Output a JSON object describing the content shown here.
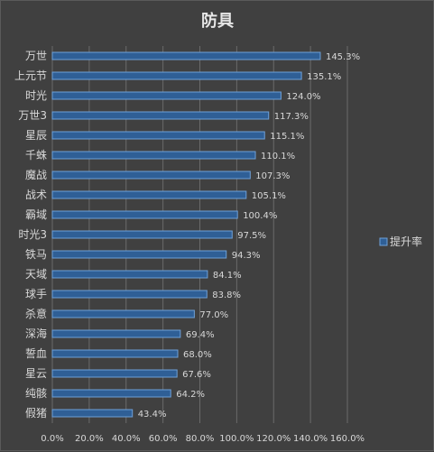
{
  "colors": {
    "background": "#404040",
    "bar_fill": "#2f5f96",
    "bar_stroke": "#6ea0d8",
    "grid": "#6a6a6a",
    "text": "#d8d8d8"
  },
  "chart_data": {
    "type": "bar",
    "orientation": "horizontal",
    "title": "防具",
    "categories": [
      "万世",
      "上元节",
      "时光",
      "万世3",
      "星辰",
      "千蛛",
      "魔战",
      "战术",
      "霸域",
      "时光3",
      "铁马",
      "天域",
      "球手",
      "杀意",
      "深海",
      "誓血",
      "星云",
      "纯骸",
      "假猪"
    ],
    "series": [
      {
        "name": "提升率",
        "values": [
          145.3,
          135.1,
          124.0,
          117.3,
          115.1,
          110.1,
          107.3,
          105.1,
          100.4,
          97.5,
          94.3,
          84.1,
          83.8,
          77.0,
          69.4,
          68.0,
          67.6,
          64.2,
          43.4
        ],
        "value_labels": [
          "145.3%",
          "135.1%",
          "124.0%",
          "117.3%",
          "115.1%",
          "110.1%",
          "107.3%",
          "105.1%",
          "100.4%",
          "97.5%",
          "94.3%",
          "84.1%",
          "83.8%",
          "77.0%",
          "69.4%",
          "68.0%",
          "67.6%",
          "64.2%",
          "43.4%"
        ]
      }
    ],
    "xlim": [
      0,
      160
    ],
    "xticks": [
      0,
      20,
      40,
      60,
      80,
      100,
      120,
      140,
      160
    ],
    "xtick_labels": [
      "0.0%",
      "20.0%",
      "40.0%",
      "60.0%",
      "80.0%",
      "100.0%",
      "120.0%",
      "140.0%",
      "160.0%"
    ],
    "grid": "vertical",
    "legend": "right"
  }
}
